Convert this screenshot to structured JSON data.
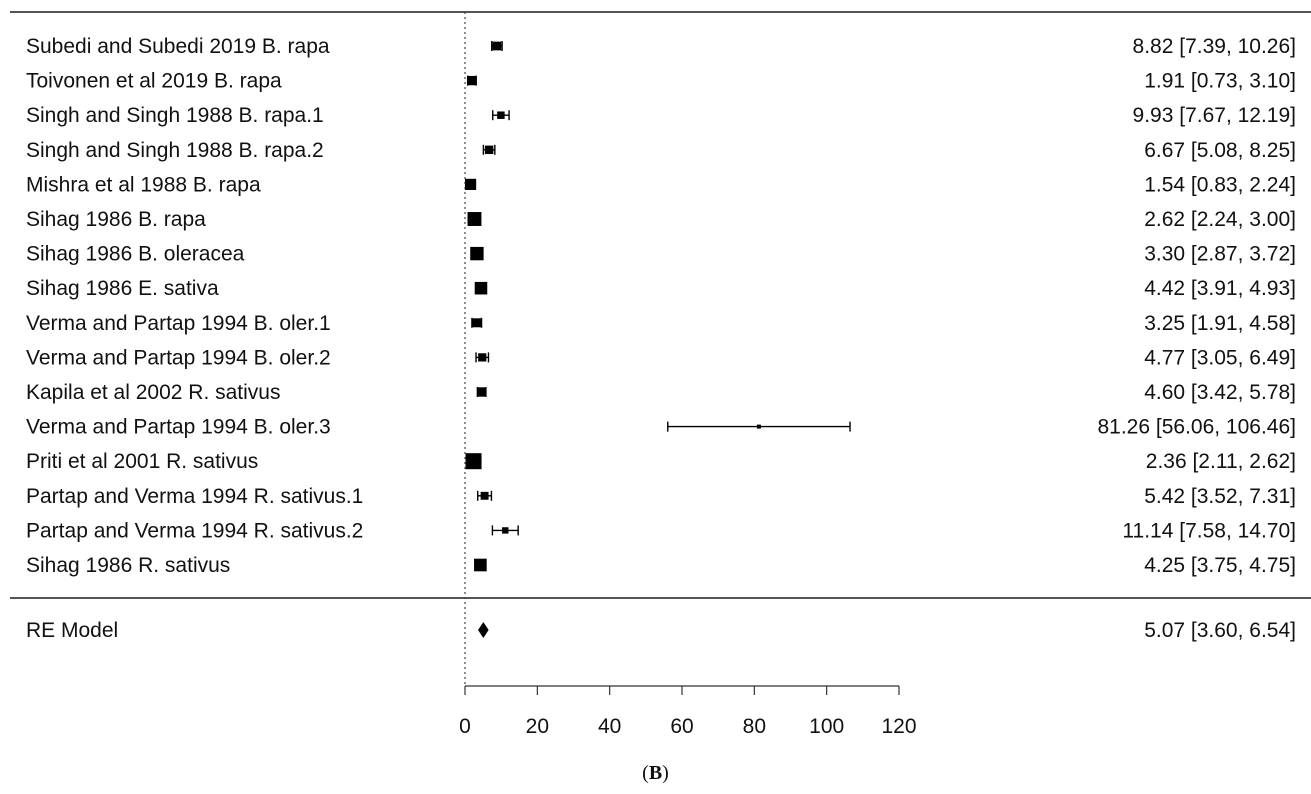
{
  "chart_data": {
    "type": "forest",
    "xlim": [
      0,
      120
    ],
    "xticks": [
      0,
      20,
      40,
      60,
      80,
      100,
      120
    ],
    "reference_line": 0,
    "studies": [
      {
        "label": "Subedi and Subedi 2019 B. rapa",
        "estimate": 8.82,
        "lower": 7.39,
        "upper": 10.26,
        "ci_text": "8.82 [7.39,  10.26]"
      },
      {
        "label": "Toivonen et al 2019 B. rapa",
        "estimate": 1.91,
        "lower": 0.73,
        "upper": 3.1,
        "ci_text": "1.91 [0.73,  3.10]"
      },
      {
        "label": "Singh and Singh 1988 B. rapa.1",
        "estimate": 9.93,
        "lower": 7.67,
        "upper": 12.19,
        "ci_text": "9.93 [7.67,  12.19]"
      },
      {
        "label": "Singh and Singh 1988 B. rapa.2",
        "estimate": 6.67,
        "lower": 5.08,
        "upper": 8.25,
        "ci_text": "6.67 [5.08,  8.25]"
      },
      {
        "label": "Mishra et al 1988 B. rapa",
        "estimate": 1.54,
        "lower": 0.83,
        "upper": 2.24,
        "ci_text": "1.54 [0.83,  2.24]"
      },
      {
        "label": "Sihag 1986 B. rapa",
        "estimate": 2.62,
        "lower": 2.24,
        "upper": 3.0,
        "ci_text": "2.62 [2.24,  3.00]"
      },
      {
        "label": "Sihag 1986 B. oleracea",
        "estimate": 3.3,
        "lower": 2.87,
        "upper": 3.72,
        "ci_text": "3.30 [2.87,  3.72]"
      },
      {
        "label": "Sihag 1986 E. sativa",
        "estimate": 4.42,
        "lower": 3.91,
        "upper": 4.93,
        "ci_text": "4.42 [3.91,  4.93]"
      },
      {
        "label": "Verma and Partap 1994 B. oler.1",
        "estimate": 3.25,
        "lower": 1.91,
        "upper": 4.58,
        "ci_text": "3.25 [1.91,  4.58]"
      },
      {
        "label": "Verma and Partap 1994 B. oler.2",
        "estimate": 4.77,
        "lower": 3.05,
        "upper": 6.49,
        "ci_text": "4.77 [3.05,  6.49]"
      },
      {
        "label": "Kapila et al 2002 R. sativus",
        "estimate": 4.6,
        "lower": 3.42,
        "upper": 5.78,
        "ci_text": "4.60 [3.42,  5.78]"
      },
      {
        "label": "Verma and Partap 1994 B. oler.3",
        "estimate": 81.26,
        "lower": 56.06,
        "upper": 106.46,
        "ci_text": "81.26 [56.06, 106.46]"
      },
      {
        "label": "Priti et al 2001 R. sativus",
        "estimate": 2.36,
        "lower": 2.11,
        "upper": 2.62,
        "ci_text": "2.36 [2.11,  2.62]"
      },
      {
        "label": "Partap and Verma 1994 R. sativus.1",
        "estimate": 5.42,
        "lower": 3.52,
        "upper": 7.31,
        "ci_text": "5.42 [3.52,  7.31]"
      },
      {
        "label": "Partap and Verma 1994 R. sativus.2",
        "estimate": 11.14,
        "lower": 7.58,
        "upper": 14.7,
        "ci_text": "11.14 [7.58,  14.70]"
      },
      {
        "label": "Sihag 1986 R. sativus",
        "estimate": 4.25,
        "lower": 3.75,
        "upper": 4.75,
        "ci_text": "4.25 [3.75,  4.75]"
      }
    ],
    "summary": {
      "label": "RE Model",
      "estimate": 5.07,
      "lower": 3.6,
      "upper": 6.54,
      "ci_text": "5.07 [3.60,  6.54]"
    },
    "marker_color": "#000000"
  },
  "caption": {
    "open": "(",
    "letter": "B",
    "close": ")"
  }
}
